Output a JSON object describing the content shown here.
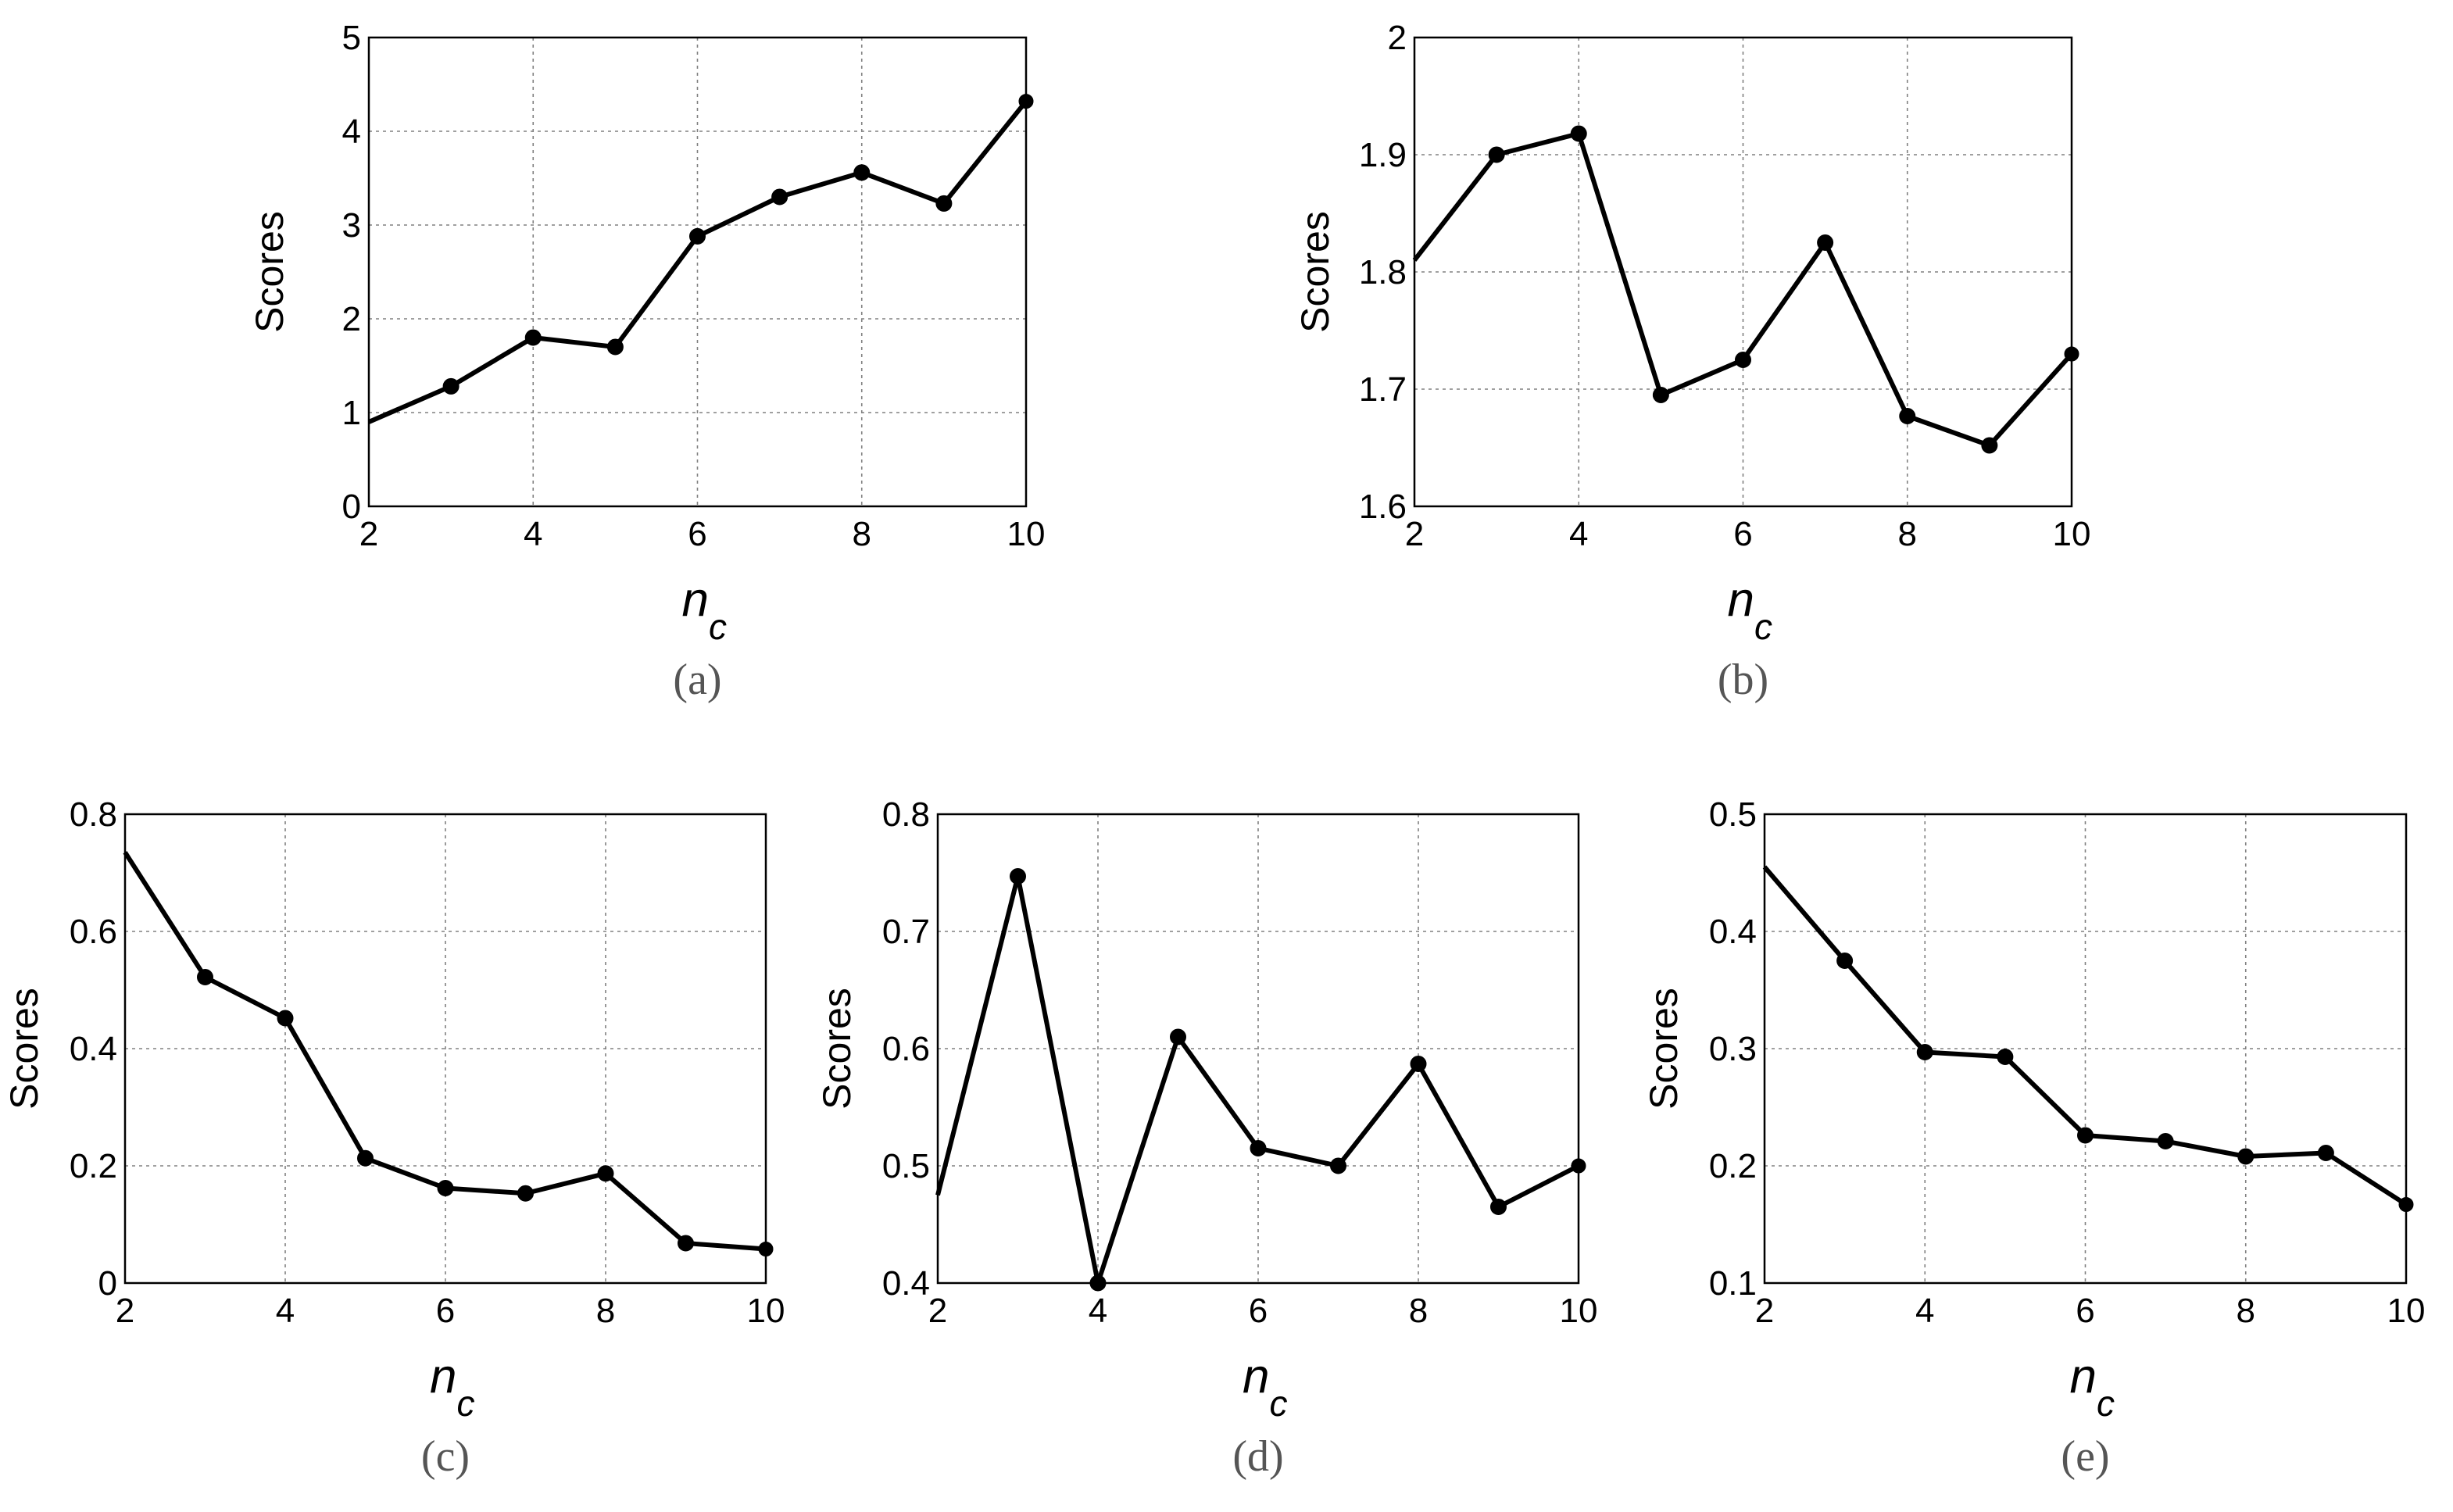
{
  "chart_data": [
    {
      "panel": "(a)",
      "type": "line",
      "xlabel": "n",
      "xlabel_sub": "c",
      "ylabel": "Scores",
      "xlim": [
        2,
        10
      ],
      "ylim": [
        0,
        5
      ],
      "xticks": [
        2,
        4,
        6,
        8,
        10
      ],
      "yticks": [
        0,
        1,
        2,
        3,
        4,
        5
      ],
      "grid": true,
      "x": [
        2,
        3,
        4,
        5,
        6,
        7,
        8,
        9,
        10
      ],
      "values": [
        0.9,
        1.28,
        1.8,
        1.7,
        2.88,
        3.3,
        3.56,
        3.23,
        4.32
      ]
    },
    {
      "panel": "(b)",
      "type": "line",
      "xlabel": "n",
      "xlabel_sub": "c",
      "ylabel": "Scores",
      "xlim": [
        2,
        10
      ],
      "ylim": [
        1.6,
        2.0
      ],
      "xticks": [
        2,
        4,
        6,
        8,
        10
      ],
      "yticks": [
        1.6,
        1.7,
        1.8,
        1.9,
        2
      ],
      "grid": true,
      "x": [
        2,
        3,
        4,
        5,
        6,
        7,
        8,
        9,
        10
      ],
      "values": [
        1.81,
        1.9,
        1.918,
        1.695,
        1.725,
        1.825,
        1.677,
        1.652,
        1.73
      ]
    },
    {
      "panel": "(c)",
      "type": "line",
      "xlabel": "n",
      "xlabel_sub": "c",
      "ylabel": "Scores",
      "xlim": [
        2,
        10
      ],
      "ylim": [
        0,
        0.8
      ],
      "xticks": [
        2,
        4,
        6,
        8,
        10
      ],
      "yticks": [
        0,
        0.2,
        0.4,
        0.6,
        0.8
      ],
      "grid": true,
      "x": [
        2,
        3,
        4,
        5,
        6,
        7,
        8,
        9,
        10
      ],
      "values": [
        0.735,
        0.522,
        0.452,
        0.213,
        0.162,
        0.153,
        0.187,
        0.068,
        0.058
      ]
    },
    {
      "panel": "(d)",
      "type": "line",
      "xlabel": "n",
      "xlabel_sub": "c",
      "ylabel": "Scores",
      "xlim": [
        2,
        10
      ],
      "ylim": [
        0.4,
        0.8
      ],
      "xticks": [
        2,
        4,
        6,
        8,
        10
      ],
      "yticks": [
        0.4,
        0.5,
        0.6,
        0.7,
        0.8
      ],
      "grid": true,
      "x": [
        2,
        3,
        4,
        5,
        6,
        7,
        8,
        9,
        10
      ],
      "values": [
        0.475,
        0.747,
        0.4,
        0.61,
        0.515,
        0.5,
        0.587,
        0.465,
        0.5
      ]
    },
    {
      "panel": "(e)",
      "type": "line",
      "xlabel": "n",
      "xlabel_sub": "c",
      "ylabel": "Scores",
      "xlim": [
        2,
        10
      ],
      "ylim": [
        0.1,
        0.5
      ],
      "xticks": [
        2,
        4,
        6,
        8,
        10
      ],
      "yticks": [
        0.1,
        0.2,
        0.3,
        0.4,
        0.5
      ],
      "grid": true,
      "x": [
        2,
        3,
        4,
        5,
        6,
        7,
        8,
        9,
        10
      ],
      "values": [
        0.455,
        0.375,
        0.297,
        0.293,
        0.226,
        0.221,
        0.208,
        0.211,
        0.167
      ]
    }
  ],
  "colors": {
    "line": "#000000",
    "grid": "#808080",
    "panel_label": "#555555"
  }
}
